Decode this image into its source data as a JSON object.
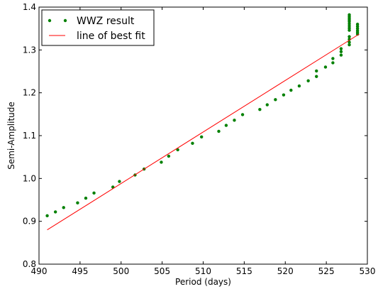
{
  "chart_data": {
    "type": "scatter",
    "title": "",
    "xlabel": "Period (days)",
    "ylabel": "Semi-Amplitude",
    "xlim": [
      490,
      530
    ],
    "ylim": [
      0.8,
      1.4
    ],
    "xticks": [
      "490",
      "495",
      "500",
      "505",
      "510",
      "515",
      "520",
      "525",
      "530"
    ],
    "yticks": [
      "0.8",
      "0.9",
      "1.0",
      "1.1",
      "1.2",
      "1.3",
      "1.4"
    ],
    "grid": false,
    "legend_position": "top-left",
    "series": [
      {
        "name": "WWZ result",
        "kind": "points",
        "color": "#008000",
        "points": [
          [
            491,
            0.913
          ],
          [
            492,
            0.922
          ],
          [
            493,
            0.932
          ],
          [
            494.7,
            0.943
          ],
          [
            495.7,
            0.954
          ],
          [
            496.7,
            0.966
          ],
          [
            499,
            0.98
          ],
          [
            499.8,
            0.993
          ],
          [
            501.7,
            1.008
          ],
          [
            502.8,
            1.022
          ],
          [
            504.9,
            1.038
          ],
          [
            505.8,
            1.052
          ],
          [
            506.9,
            1.067
          ],
          [
            508.7,
            1.082
          ],
          [
            509.8,
            1.097
          ],
          [
            511.9,
            1.11
          ],
          [
            512.8,
            1.124
          ],
          [
            513.8,
            1.136
          ],
          [
            514.8,
            1.149
          ],
          [
            516.9,
            1.161
          ],
          [
            517.8,
            1.172
          ],
          [
            518.8,
            1.184
          ],
          [
            519.8,
            1.195
          ],
          [
            520.7,
            1.206
          ],
          [
            521.7,
            1.216
          ],
          [
            522.8,
            1.228
          ],
          [
            523.8,
            1.238
          ],
          [
            523.8,
            1.251
          ],
          [
            524.9,
            1.26
          ],
          [
            525.8,
            1.27
          ],
          [
            525.8,
            1.28
          ],
          [
            526.8,
            1.288
          ],
          [
            526.8,
            1.296
          ],
          [
            526.8,
            1.303
          ],
          [
            527.8,
            1.312
          ],
          [
            527.8,
            1.318
          ],
          [
            527.8,
            1.325
          ],
          [
            527.8,
            1.331
          ],
          [
            527.8,
            1.346
          ],
          [
            527.8,
            1.351
          ],
          [
            527.8,
            1.356
          ],
          [
            527.8,
            1.361
          ],
          [
            527.8,
            1.366
          ],
          [
            527.8,
            1.37
          ],
          [
            527.8,
            1.374
          ],
          [
            527.8,
            1.378
          ],
          [
            527.8,
            1.382
          ],
          [
            528.8,
            1.337
          ],
          [
            528.8,
            1.341
          ],
          [
            528.8,
            1.345
          ],
          [
            528.8,
            1.35
          ],
          [
            528.8,
            1.355
          ],
          [
            528.8,
            1.36
          ]
        ]
      },
      {
        "name": "line of best fit",
        "kind": "line",
        "color": "#ff0000",
        "points": [
          [
            491,
            0.88
          ],
          [
            529,
            1.337
          ]
        ]
      }
    ]
  }
}
